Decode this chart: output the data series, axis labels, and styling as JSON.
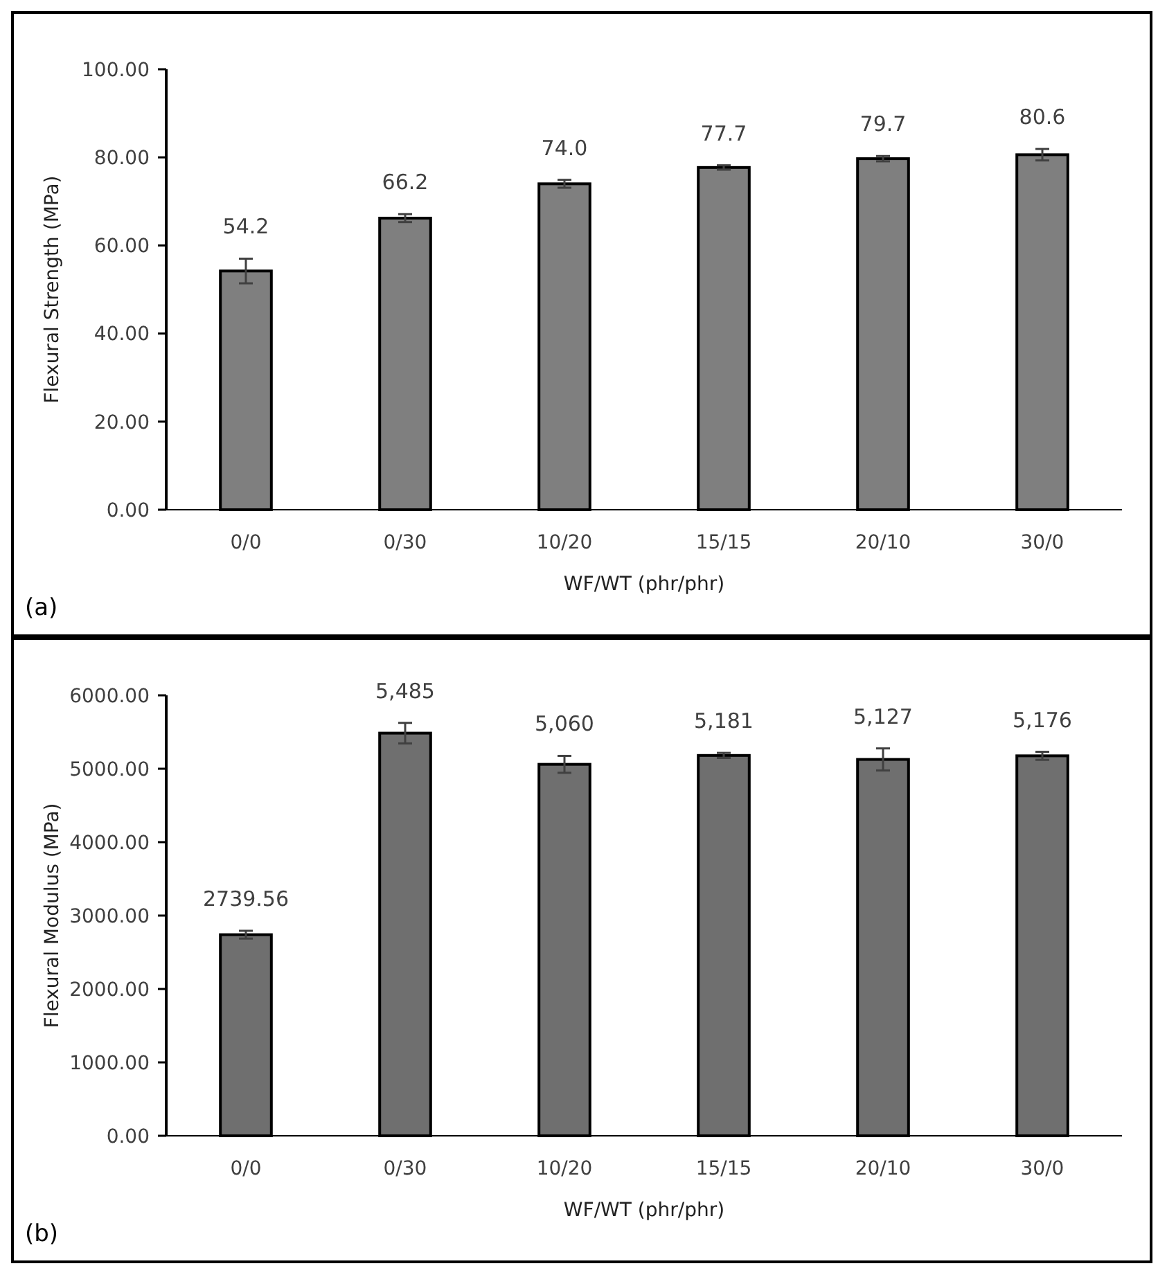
{
  "chart_data": [
    {
      "type": "bar",
      "xlabel": "WF/WT (phr/phr)",
      "ylabel": "Flexural Strength (MPa)",
      "categories": [
        "0/0",
        "0/30",
        "10/20",
        "15/15",
        "20/10",
        "30/0"
      ],
      "values": [
        54.2,
        66.2,
        74.0,
        77.7,
        79.7,
        80.6
      ],
      "errors": [
        2.8,
        0.9,
        0.9,
        0.5,
        0.6,
        1.3
      ],
      "value_labels": [
        "54.2",
        "66.2",
        "74.0",
        "77.7",
        "79.7",
        "80.6"
      ],
      "color": "#7f7f7f",
      "ylim": [
        0,
        100
      ],
      "yticks": [
        {
          "value": 0,
          "label": "0.00"
        },
        {
          "value": 20,
          "label": "20.00"
        },
        {
          "value": 40,
          "label": "40.00"
        },
        {
          "value": 60,
          "label": "60.00"
        },
        {
          "value": 80,
          "label": "80.00"
        },
        {
          "value": 100,
          "label": "100.00"
        }
      ],
      "grid": false,
      "annotations": [
        "(a)"
      ]
    },
    {
      "type": "bar",
      "xlabel": "WF/WT (phr/phr)",
      "ylabel": "Flexural Modulus (MPa)",
      "categories": [
        "0/0",
        "0/30",
        "10/20",
        "15/15",
        "20/10",
        "30/0"
      ],
      "values": [
        2739.56,
        5485,
        5060,
        5181,
        5127,
        5176
      ],
      "errors": [
        53,
        140,
        115,
        35,
        150,
        55
      ],
      "value_labels": [
        "2739.56",
        "5,485",
        "5,060",
        "5,181",
        "5,127",
        "5,176"
      ],
      "color": "#6f6f6f",
      "ylim": [
        0,
        6000
      ],
      "yticks": [
        {
          "value": 0,
          "label": "0.00"
        },
        {
          "value": 1000,
          "label": "1000.00"
        },
        {
          "value": 2000,
          "label": "2000.00"
        },
        {
          "value": 3000,
          "label": "3000.00"
        },
        {
          "value": 4000,
          "label": "4000.00"
        },
        {
          "value": 5000,
          "label": "5000.00"
        },
        {
          "value": 6000,
          "label": "6000.00"
        }
      ],
      "grid": false,
      "annotations": [
        "(b)"
      ]
    }
  ]
}
